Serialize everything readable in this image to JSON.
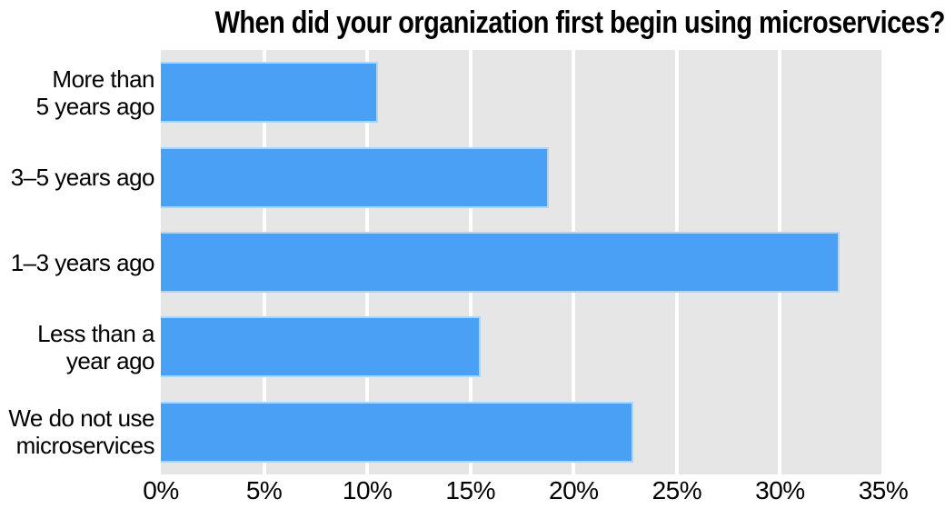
{
  "chart_data": {
    "type": "bar",
    "orientation": "horizontal",
    "title": "When did your organization first begin using microservices?",
    "categories": [
      "More than\n5 years ago",
      "3–5 years ago",
      "1–3 years ago",
      "Less than a\nyear ago",
      "We do not use\nmicroservices"
    ],
    "values": [
      10.5,
      18.8,
      32.9,
      15.5,
      22.9
    ],
    "unit": "%",
    "xlabel": "",
    "ylabel": "",
    "xlim": [
      0,
      35
    ],
    "x_ticks": [
      0,
      5,
      10,
      15,
      20,
      25,
      30,
      35
    ],
    "x_tick_labels": [
      "0%",
      "5%",
      "10%",
      "15%",
      "20%",
      "25%",
      "30%",
      "35%"
    ],
    "grid": true,
    "legend": null,
    "colors": {
      "bar": "#4aa0f5",
      "bar_edge": "rgba(255,255,255,0.55)",
      "plot_bg": "#e6e6e6",
      "gridline": "#ffffff",
      "text": "#000000",
      "page_bg": "#ffffff"
    }
  }
}
